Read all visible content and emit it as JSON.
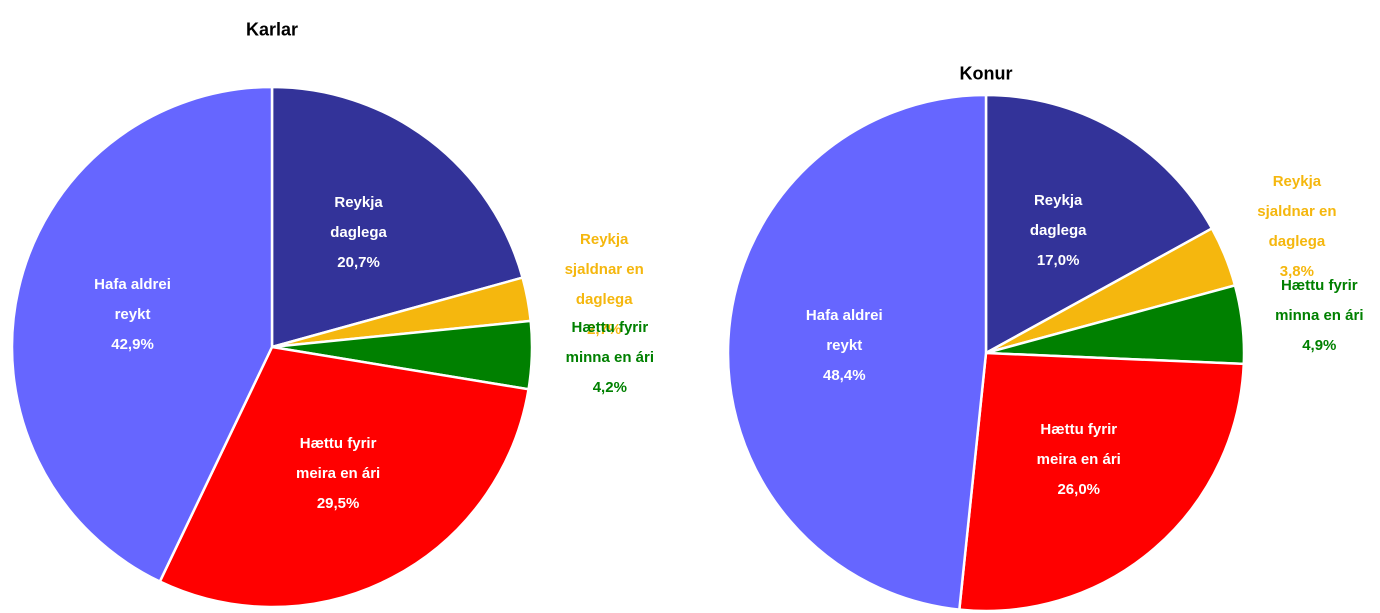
{
  "chart_data": [
    {
      "type": "pie",
      "title": "Karlar",
      "categories": [
        "Reykja daglega",
        "Reykja sjaldnar en daglega",
        "Hættu fyrir minna en ári",
        "Hættu fyrir meira en ári",
        "Hafa aldrei reykt"
      ],
      "values": [
        20.7,
        2.7,
        4.2,
        29.5,
        42.9
      ],
      "value_labels": [
        "20,7%",
        "2,7%",
        "4,2%",
        "29,5%",
        "42,9%"
      ],
      "colors": [
        "#333399",
        "#f5b70e",
        "#008000",
        "#ff0000",
        "#6666ff"
      ]
    },
    {
      "type": "pie",
      "title": "Konur",
      "categories": [
        "Reykja daglega",
        "Reykja sjaldnar en daglega",
        "Hættu fyrir minna en ári",
        "Hættu fyrir meira en ári",
        "Hafa aldrei reykt"
      ],
      "values": [
        17.0,
        3.8,
        4.9,
        26.0,
        48.4
      ],
      "value_labels": [
        "17,0%",
        "3,8%",
        "4,9%",
        "26,0%",
        "48,4%"
      ],
      "colors": [
        "#333399",
        "#f5b70e",
        "#008000",
        "#ff0000",
        "#6666ff"
      ]
    }
  ]
}
